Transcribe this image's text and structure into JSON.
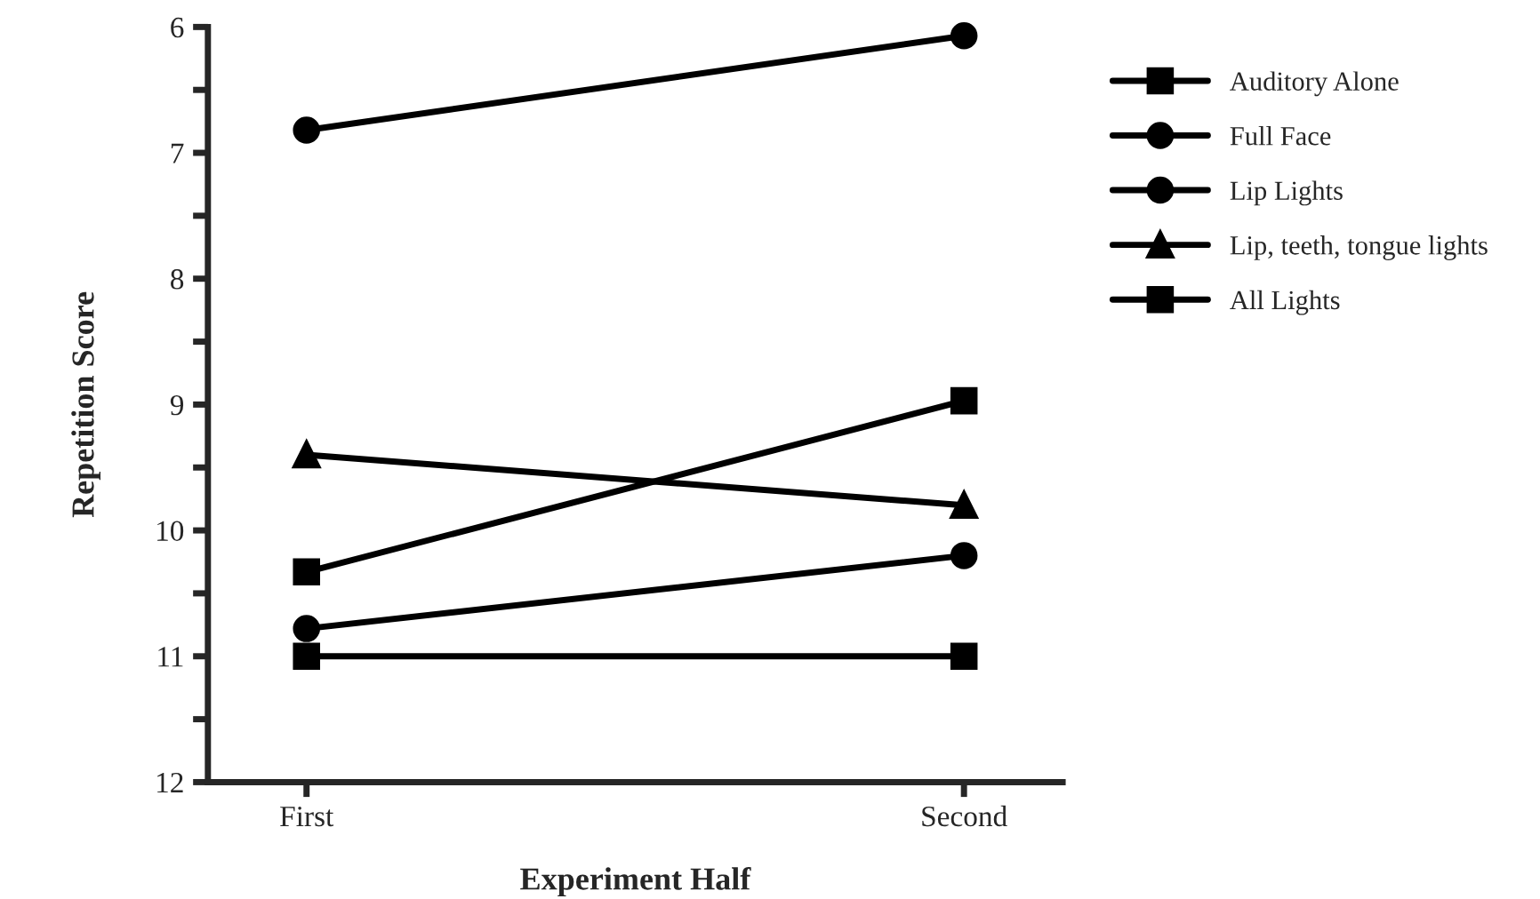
{
  "chart_data": {
    "type": "line",
    "xlabel": "Experiment Half",
    "ylabel": "Repetition Score",
    "categories": [
      "First",
      "Second"
    ],
    "series": [
      {
        "name": "Auditory Alone",
        "color": "#000000",
        "marker": "square",
        "values": [
          11.0,
          11.0
        ]
      },
      {
        "name": "Full Face",
        "color": "#000000",
        "marker": "circle",
        "values": [
          6.82,
          6.07
        ]
      },
      {
        "name": "Lip Lights",
        "color": "#000000",
        "marker": "circle",
        "values": [
          10.78,
          10.2
        ]
      },
      {
        "name": "Lip, teeth, tongue lights",
        "color": "#000000",
        "marker": "triangle",
        "values": [
          9.4,
          9.8
        ]
      },
      {
        "name": "All Lights",
        "color": "#000000",
        "marker": "square",
        "values": [
          10.33,
          8.97
        ]
      }
    ],
    "ylim": [
      12,
      6
    ],
    "yticks": [
      6,
      {
        "value": 6.5,
        "label": null
      },
      7,
      {
        "value": 7.5,
        "label": null
      },
      8,
      {
        "value": 8.5,
        "label": null
      },
      9,
      {
        "value": 9.5,
        "label": null
      },
      10,
      {
        "value": 10.5,
        "label": null
      },
      11,
      {
        "value": 11.5,
        "label": null
      },
      12
    ],
    "grid": false,
    "legend": "right",
    "line_style": "solid"
  }
}
